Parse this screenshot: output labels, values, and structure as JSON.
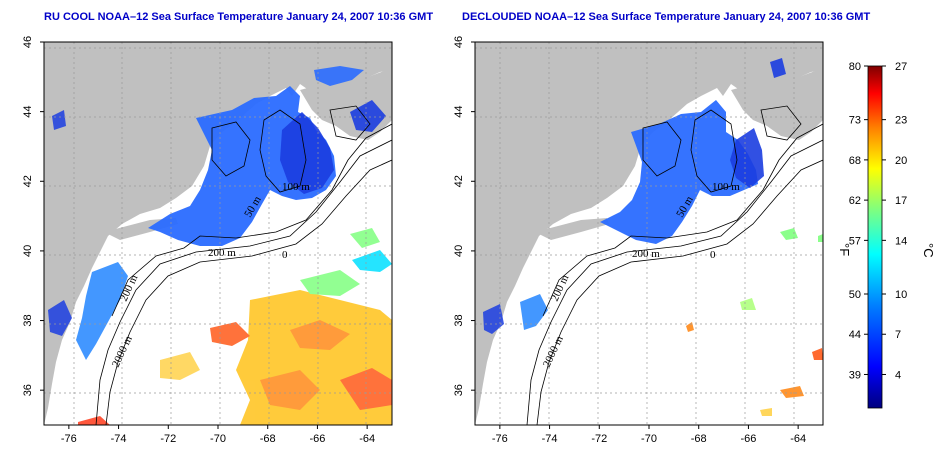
{
  "panels": [
    {
      "title": "RU COOL NOAA–12 Sea Surface Temperature January 24, 2007 10:36 GMT",
      "isobaths": [
        "200 m",
        "100 m",
        "50 m",
        "2000 m",
        "200 m",
        "0"
      ]
    },
    {
      "title": "DECLOUDED NOAA–12 Sea Surface Temperature January 24, 2007 10:36 GMT",
      "isobaths": [
        "200 m",
        "100 m",
        "50 m",
        "2000 m",
        "200 m",
        "0"
      ]
    }
  ],
  "axes": {
    "x_ticks": [
      "-76",
      "-74",
      "-72",
      "-70",
      "-68",
      "-66",
      "-64"
    ],
    "x_values": [
      -76,
      -74,
      -72,
      -70,
      -68,
      -66,
      -64
    ],
    "y_ticks": [
      "36",
      "38",
      "40",
      "42",
      "44",
      "46"
    ],
    "y_values": [
      36,
      38,
      40,
      42,
      44,
      46
    ],
    "lon_range": [
      -77,
      -63
    ],
    "lat_range": [
      35,
      46
    ],
    "grid": true
  },
  "colorbar": {
    "fahrenheit_labels": [
      "80",
      "73",
      "68",
      "62",
      "57",
      "50",
      "44",
      "39"
    ],
    "celsius_labels": [
      "27",
      "23",
      "20",
      "17",
      "14",
      "10",
      "7",
      "4"
    ],
    "celsius_values": [
      27,
      23,
      20,
      17,
      14,
      10,
      7,
      4
    ],
    "range_c": [
      1.5,
      27
    ],
    "unit_f": "°F",
    "unit_c": "°C",
    "colors": [
      "#00007f",
      "#0000ff",
      "#007fff",
      "#00ffff",
      "#7fff7f",
      "#ffff00",
      "#ff7f00",
      "#ff0000",
      "#7f0000"
    ]
  },
  "map_colors": {
    "land": "#c0c0c0",
    "ocean": "#ffffff",
    "contour": "#000000",
    "grid": "#9a9a9a"
  }
}
